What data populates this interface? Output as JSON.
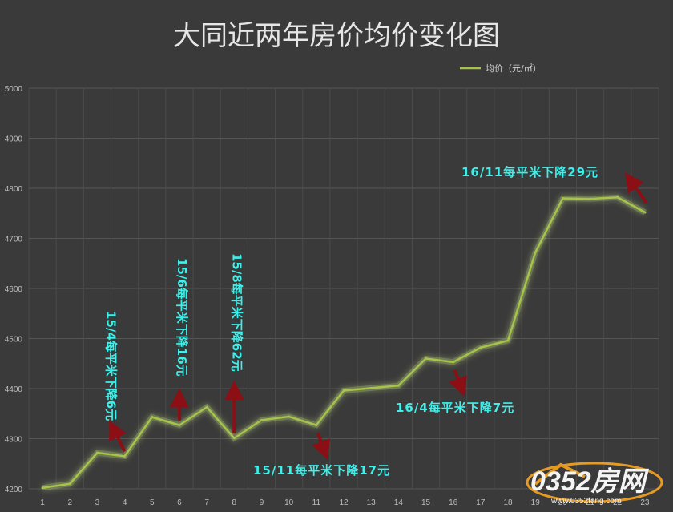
{
  "chart_data": {
    "type": "line",
    "title": "大同近两年房价均价变化图",
    "legend": {
      "position": "top-right",
      "label": "均价（元/㎡）",
      "color": "#a6c44a"
    },
    "x": [
      1,
      2,
      3,
      4,
      5,
      6,
      7,
      8,
      9,
      10,
      11,
      12,
      13,
      14,
      15,
      16,
      17,
      18,
      19,
      20,
      21,
      22,
      23
    ],
    "x_tick_labels": [
      "1",
      "2",
      "3",
      "4",
      "5",
      "6",
      "7",
      "8",
      "9",
      "10",
      "11",
      "12",
      "13",
      "14",
      "15",
      "16",
      "17",
      "18",
      "19",
      "20",
      "21",
      "22",
      "23"
    ],
    "series": [
      {
        "name": "均价（元/㎡）",
        "values": [
          4202,
          4210,
          4272,
          4265,
          4343,
          4327,
          4363,
          4301,
          4337,
          4344,
          4327,
          4396,
          4401,
          4406,
          4460,
          4453,
          4482,
          4496,
          4672,
          4780,
          4779,
          4782,
          4752
        ]
      }
    ],
    "ylim": [
      4200,
      5000
    ],
    "y_ticks": [
      4200,
      4300,
      4400,
      4500,
      4600,
      4700,
      4800,
      4900,
      5000
    ],
    "grid": true,
    "annotations": [
      {
        "text": "15/4每平米下降6元",
        "orientation": "vertical",
        "x": 4,
        "arrow": "up"
      },
      {
        "text": "15/6每平米下降16元",
        "orientation": "vertical",
        "x": 6,
        "arrow": "up"
      },
      {
        "text": "15/8每平米下降62元",
        "orientation": "vertical",
        "x": 8,
        "arrow": "up"
      },
      {
        "text": "15/11每平米下降17元",
        "orientation": "horizontal",
        "x": 11,
        "arrow": "down"
      },
      {
        "text": "16/4每平米下降7元",
        "orientation": "horizontal",
        "x": 16,
        "arrow": "down"
      },
      {
        "text": "16/11每平米下降29元",
        "orientation": "horizontal",
        "x": 23,
        "arrow": "up"
      }
    ]
  },
  "watermark": {
    "brand": "0352房网",
    "url": "www.0352fang.com"
  },
  "colors": {
    "background": "#3a3a3a",
    "grid": "#555555",
    "line": "#a6c44a",
    "glow": "#d6f08a",
    "annotation": "#3ff0ea",
    "arrow": "#8b0f14"
  }
}
